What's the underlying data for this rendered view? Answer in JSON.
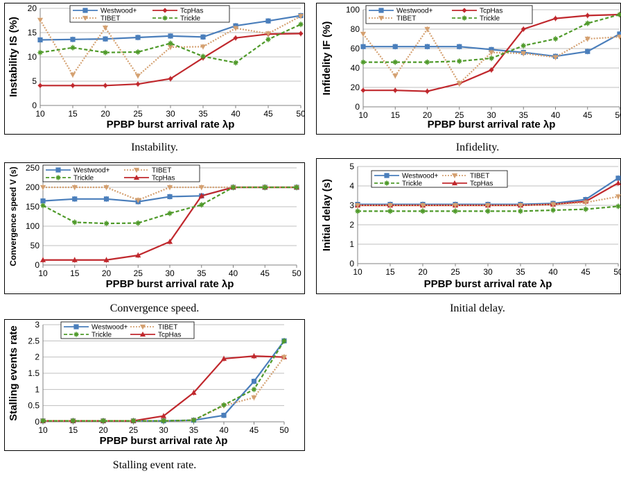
{
  "colors": {
    "westwood": "#4a7ebb",
    "tcphas": "#c0282d",
    "tibet": "#d4a070",
    "trickle": "#4f9a2a",
    "grid": "#bfbfbf",
    "errorbar": "#999999"
  },
  "charts": [
    {
      "caption": "Instability.",
      "chart_data": {
        "type": "line",
        "ylabel": "Instability IS (%)",
        "xlabel": "PPBP burst arrival  rate λp",
        "x": [
          10,
          15,
          20,
          25,
          30,
          35,
          40,
          45,
          50
        ],
        "ylim": [
          0,
          20
        ],
        "yticks": [
          0,
          5,
          10,
          15,
          20
        ],
        "grid": true,
        "legend_order": [
          "Westwood+",
          "TcpHas",
          "TIBET",
          "Trickle"
        ],
        "series": [
          {
            "name": "Westwood+",
            "values": [
              13.5,
              13.6,
              13.7,
              14.0,
              14.3,
              14.1,
              16.4,
              17.4,
              18.5
            ]
          },
          {
            "name": "TcpHas",
            "values": [
              4.1,
              4.1,
              4.1,
              4.4,
              5.5,
              9.8,
              13.9,
              14.7,
              14.8
            ]
          },
          {
            "name": "TIBET",
            "values": [
              17.6,
              6.3,
              16.0,
              6.1,
              12.0,
              12.1,
              15.9,
              14.8,
              18.4
            ]
          },
          {
            "name": "Trickle",
            "values": [
              10.9,
              11.9,
              10.9,
              11.0,
              12.8,
              10.1,
              8.8,
              13.6,
              16.7
            ]
          }
        ]
      }
    },
    {
      "caption": "Infidelity.",
      "chart_data": {
        "type": "line",
        "ylabel": "Infidelity IF (%)",
        "xlabel": "PPBP burst arrival  rate λp",
        "x": [
          10,
          15,
          20,
          25,
          30,
          35,
          40,
          45,
          50
        ],
        "ylim": [
          0,
          100
        ],
        "yticks": [
          0,
          20,
          40,
          60,
          80,
          100
        ],
        "grid": true,
        "legend_order": [
          "Westwood+",
          "TcpHas",
          "TIBET",
          "Trickle"
        ],
        "series": [
          {
            "name": "Westwood+",
            "values": [
              62,
              62,
              62,
              62,
              59,
              56,
              52,
              57,
              75
            ]
          },
          {
            "name": "TcpHas",
            "values": [
              17,
              17,
              16,
              24,
              38,
              80,
              91,
              94,
              95
            ]
          },
          {
            "name": "TIBET",
            "values": [
              75,
              32,
              80,
              24,
              56,
              55,
              51,
              70,
              72
            ]
          },
          {
            "name": "Trickle",
            "values": [
              46,
              46,
              46,
              47,
              50,
              63,
              70,
              86,
              95
            ]
          }
        ]
      }
    },
    {
      "caption": "Convergence speed.",
      "chart_data": {
        "type": "line",
        "ylabel": "Convergence speed V (s)",
        "xlabel": "PPBP burst arrival  rate λp",
        "x": [
          10,
          15,
          20,
          25,
          30,
          35,
          40,
          45,
          50
        ],
        "ylim": [
          0,
          250
        ],
        "yticks": [
          0,
          50,
          100,
          150,
          200,
          250
        ],
        "grid": true,
        "legend_order": [
          "Westwood+",
          "TIBET",
          "Trickle",
          "TcpHas"
        ],
        "series": [
          {
            "name": "Westwood+",
            "values": [
              165,
              170,
              170,
              163,
              176,
              178,
              200,
              200,
              200
            ]
          },
          {
            "name": "TcpHas",
            "values": [
              13,
              13,
              13,
              25,
              60,
              178,
              200,
              200,
              200
            ]
          },
          {
            "name": "TIBET",
            "values": [
              200,
              200,
              200,
              167,
              200,
              200,
              200,
              200,
              200
            ]
          },
          {
            "name": "Trickle",
            "values": [
              153,
              110,
              107,
              108,
              133,
              155,
              200,
              200,
              200
            ]
          }
        ]
      }
    },
    {
      "caption": "Initial delay.",
      "chart_data": {
        "type": "line",
        "ylabel": "Initial delay (s)",
        "xlabel": "PPBP burst arrival  rate λp",
        "x": [
          10,
          15,
          20,
          25,
          30,
          35,
          40,
          45,
          50
        ],
        "ylim": [
          0,
          5
        ],
        "yticks": [
          0,
          1,
          2,
          3,
          4,
          5
        ],
        "grid": true,
        "legend_order": [
          "Westwood+",
          "TIBET",
          "Trickle",
          "TcpHas"
        ],
        "series": [
          {
            "name": "Westwood+",
            "values": [
              3.05,
              3.05,
              3.05,
              3.05,
              3.05,
              3.05,
              3.1,
              3.3,
              4.4
            ]
          },
          {
            "name": "TcpHas",
            "values": [
              3.0,
              3.0,
              3.0,
              3.0,
              3.0,
              3.0,
              3.05,
              3.2,
              4.15
            ]
          },
          {
            "name": "TIBET",
            "values": [
              3.0,
              3.0,
              3.0,
              3.0,
              3.0,
              3.0,
              3.05,
              3.15,
              3.45
            ]
          },
          {
            "name": "Trickle",
            "values": [
              2.7,
              2.7,
              2.7,
              2.7,
              2.7,
              2.7,
              2.75,
              2.8,
              2.95
            ]
          }
        ]
      }
    },
    {
      "caption": "Stalling event rate.",
      "chart_data": {
        "type": "line",
        "ylabel": "Stalling events rate",
        "xlabel": "PPBP burst arrival  rate λp",
        "x": [
          10,
          15,
          20,
          25,
          30,
          35,
          40,
          45,
          50
        ],
        "ylim": [
          0,
          3
        ],
        "yticks": [
          0,
          0.5,
          1,
          1.5,
          2,
          2.5,
          3
        ],
        "grid": true,
        "legend_order": [
          "Westwood+",
          "TIBET",
          "Trickle",
          "TcpHas"
        ],
        "series": [
          {
            "name": "Westwood+",
            "values": [
              0.03,
              0.03,
              0.03,
              0.03,
              0.03,
              0.05,
              0.2,
              1.25,
              2.5
            ]
          },
          {
            "name": "TcpHas",
            "values": [
              0.03,
              0.03,
              0.03,
              0.03,
              0.18,
              0.9,
              1.95,
              2.03,
              2.0
            ]
          },
          {
            "name": "TIBET",
            "values": [
              0.03,
              0.03,
              0.03,
              0.03,
              0.03,
              0.05,
              0.5,
              0.75,
              2.0
            ]
          },
          {
            "name": "Trickle",
            "values": [
              0.03,
              0.03,
              0.03,
              0.03,
              0.03,
              0.05,
              0.52,
              1.0,
              2.5
            ]
          }
        ]
      }
    }
  ]
}
